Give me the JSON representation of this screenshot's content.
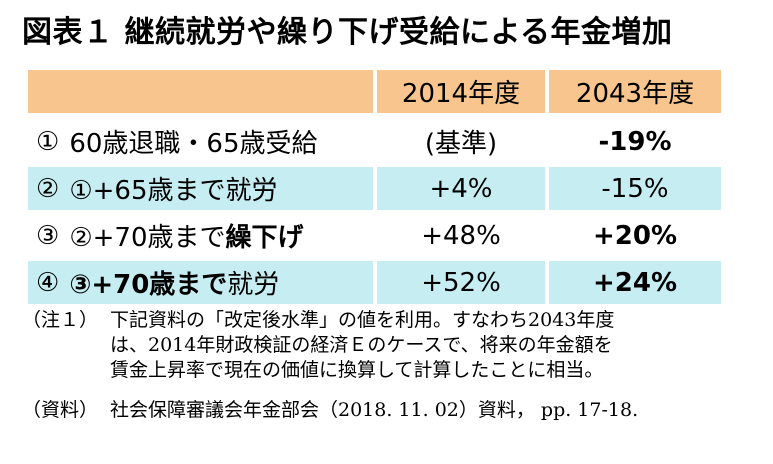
{
  "title": "図表１ 継続就労や繰り下げ受給による年金増加",
  "table": {
    "headers": [
      "",
      "2014年度",
      "2043年度"
    ],
    "rows": [
      {
        "num": "①",
        "label": "60歳退職・65歳受給",
        "v2014": "(基準)",
        "v2043": "-19%"
      },
      {
        "num": "②",
        "label_pre": "①+65歳まで就労",
        "label_bold": "",
        "v2014": "+4%",
        "v2043": "-15%"
      },
      {
        "num": "③",
        "label_pre": "②+70歳まで",
        "label_bold": "繰下げ",
        "v2014": "+48%",
        "v2043": "+20%"
      },
      {
        "num": "④",
        "label_pre_bold": "③+70歳まで",
        "label_post": "就労",
        "v2014": "+52%",
        "v2043": "+24%"
      }
    ]
  },
  "notes": {
    "note1_prefix": "（注１）",
    "note1_line1": "下記資料の「改定後水準」の値を利用。すなわち2043年度",
    "note1_line2": "は、2014年財政検証の経済Ｅのケースで、将来の年金額を",
    "note1_line3": "賃金上昇率で現在の価値に換算して計算したことに相当。",
    "source_prefix": "（資料）",
    "source_text": "社会保障審議会年金部会（2018. 11. 02）資料， pp. 17-18."
  }
}
